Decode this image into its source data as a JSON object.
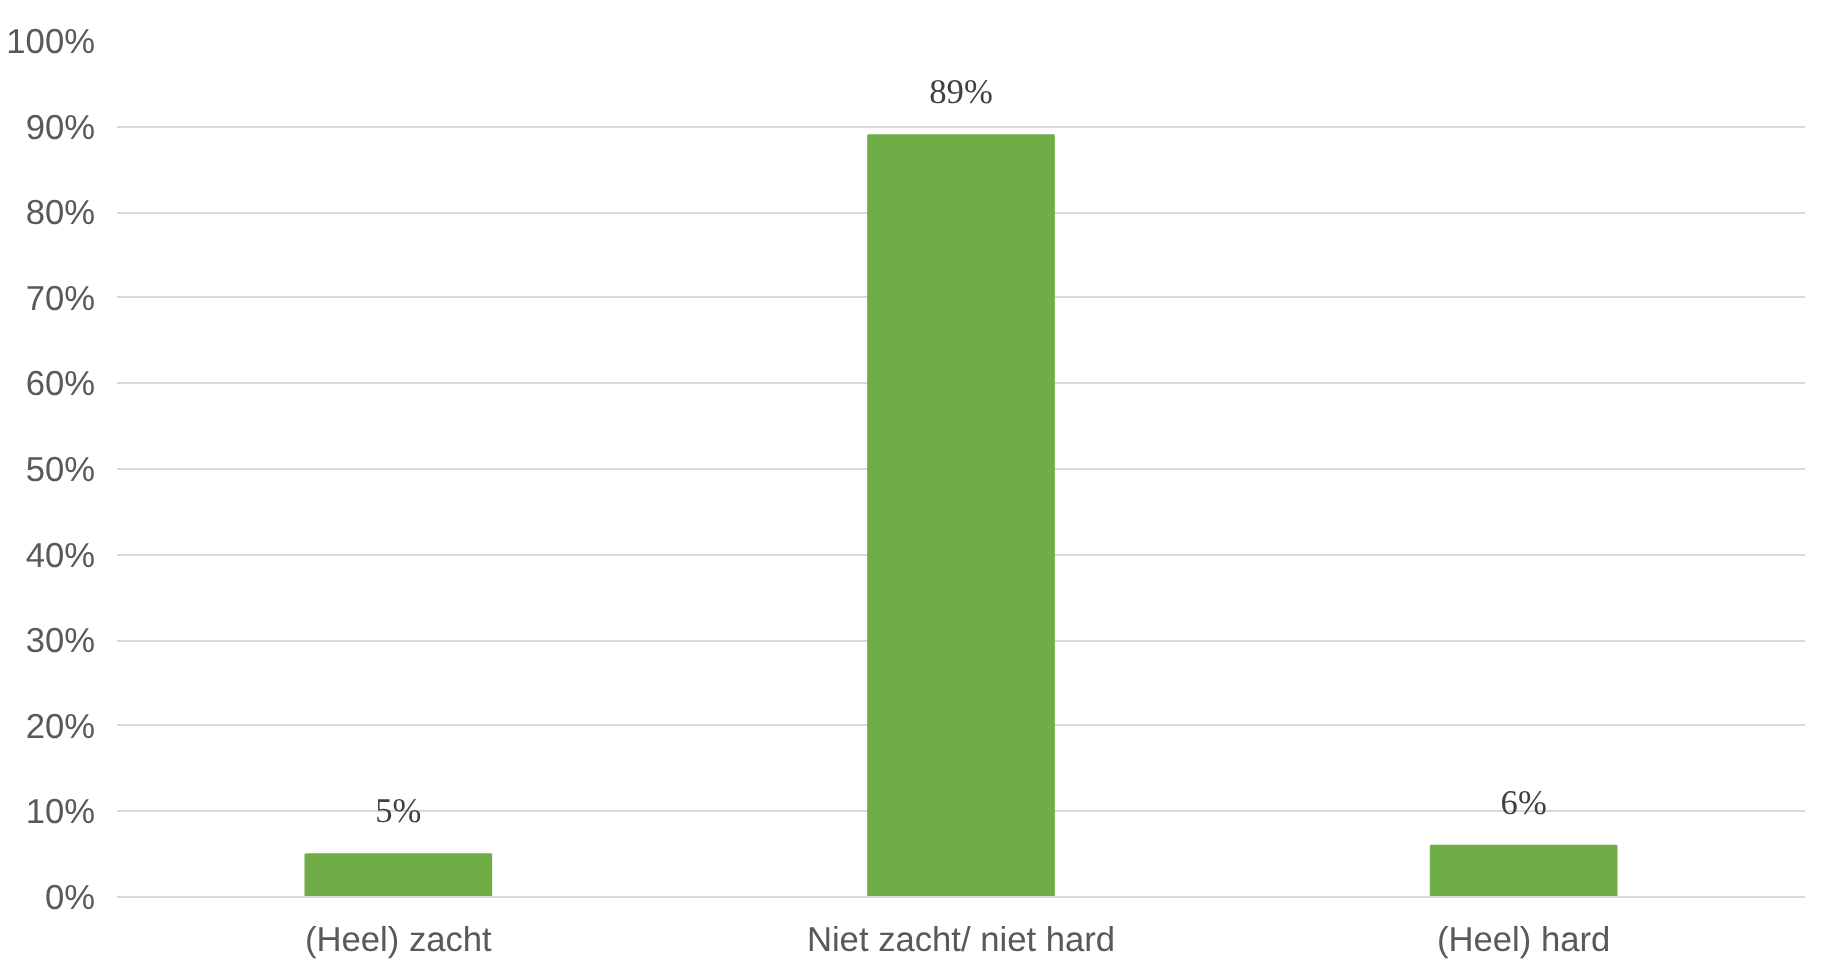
{
  "chart_data": {
    "type": "bar",
    "categories": [
      "(Heel) zacht",
      "Niet zacht/ niet hard",
      "(Heel) hard"
    ],
    "values": [
      5,
      89,
      6
    ],
    "value_labels": [
      "5%",
      "89%",
      "6%"
    ],
    "color": "#70ad47",
    "ylim": [
      0,
      100
    ],
    "yticks": [
      {
        "value": 0,
        "label": "0%"
      },
      {
        "value": 10,
        "label": "10%"
      },
      {
        "value": 20,
        "label": "20%"
      },
      {
        "value": 30,
        "label": "30%"
      },
      {
        "value": 40,
        "label": "40%"
      },
      {
        "value": 50,
        "label": "50%"
      },
      {
        "value": 60,
        "label": "60%"
      },
      {
        "value": 70,
        "label": "70%"
      },
      {
        "value": 80,
        "label": "80%"
      },
      {
        "value": 90,
        "label": "90%"
      },
      {
        "value": 100,
        "label": "100%"
      }
    ],
    "grid": "y"
  }
}
